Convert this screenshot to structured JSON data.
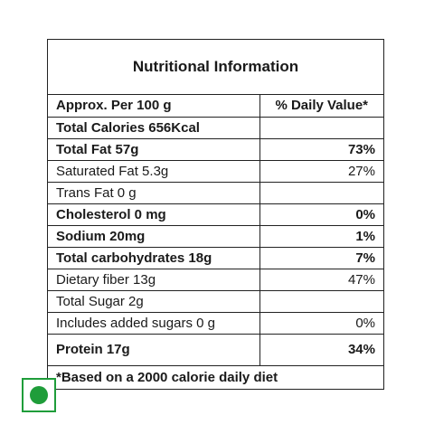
{
  "title": "Nutritional Information",
  "header": {
    "left": "Approx. Per 100 g",
    "right": "% Daily Value*"
  },
  "rows": [
    {
      "label": "Total Calories 656Kcal",
      "value": ""
    },
    {
      "label": "Total Fat 57g",
      "value": "73%"
    },
    {
      "label": "Saturated Fat 5.3g",
      "value": "27%"
    },
    {
      "label": "Trans Fat 0 g",
      "value": ""
    },
    {
      "label": "Cholesterol 0 mg",
      "value": "0%"
    },
    {
      "label": "Sodium 20mg",
      "value": "1%"
    },
    {
      "label": "Total carbohydrates 18g",
      "value": "7%"
    },
    {
      "label": "Dietary fiber 13g",
      "value": "47%"
    },
    {
      "label": "Total Sugar 2g",
      "value": ""
    },
    {
      "label": "Includes added sugars 0 g",
      "value": "0%"
    },
    {
      "label": "Protein 17g",
      "value": "34%"
    }
  ],
  "footnote": "*Based on a 2000 calorie daily diet",
  "colors": {
    "border": "#222222",
    "veg_mark": "#1f9d3a"
  },
  "icons": {
    "veg_mark": "vegetarian-mark-icon"
  }
}
